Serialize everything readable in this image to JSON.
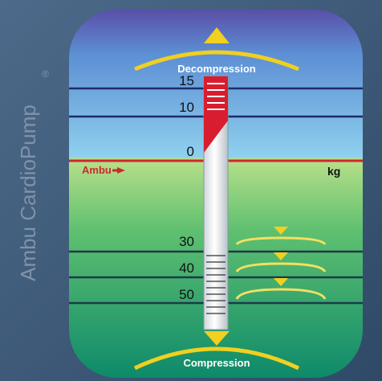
{
  "device": {
    "brand_mark": "Ambu CardioPump",
    "registered": "®"
  },
  "gauge": {
    "top_label": "Decompression",
    "bottom_label": "Compression",
    "unit": "kg",
    "zero_marker": "Ambu",
    "decompression_scale": [
      15,
      10,
      0
    ],
    "compression_scale": [
      30,
      40,
      50
    ]
  }
}
